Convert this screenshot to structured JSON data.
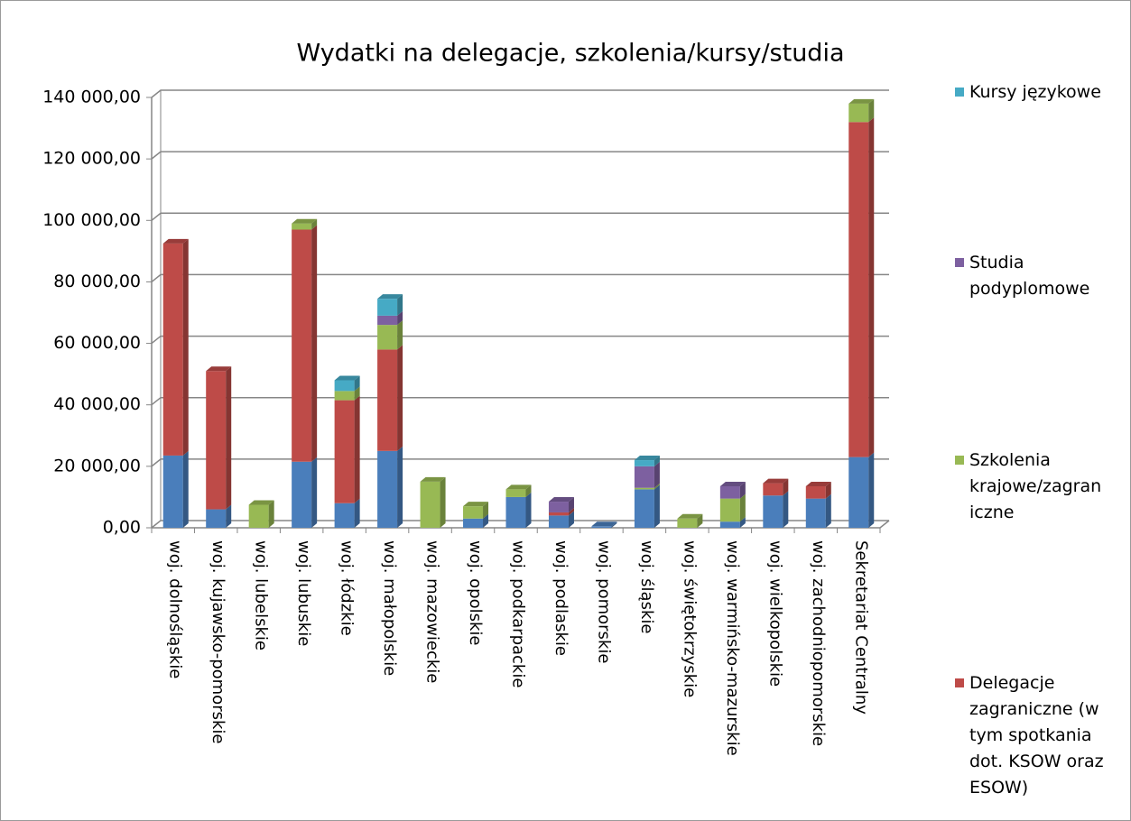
{
  "chart_data": {
    "type": "bar",
    "stacked": true,
    "title": "Wydatki na delegacje, szkolenia/kursy/studia",
    "categories": [
      "woj. dolnośląskie",
      "woj. kujawsko-pomorskie",
      "woj. lubelskie",
      "woj. lubuskie",
      "woj. łódzkie",
      "woj. małopolskie",
      "woj. mazowieckie",
      "woj. opolskie",
      "woj. podkarpackie",
      "woj. podlaskie",
      "woj. pomorskie",
      "woj. śląskie",
      "woj. świętokrzyskie",
      "woj. warmińsko-mazurskie",
      "woj. wielkopolskie",
      "woj. zachodniopomorskie",
      "Sekretariat Centralny"
    ],
    "series": [
      {
        "color": "#4a7ebb",
        "values": [
          23500,
          6000,
          0,
          21500,
          8000,
          25000,
          0,
          3000,
          10000,
          4000,
          500,
          12500,
          0,
          2000,
          10500,
          9500,
          23000
        ]
      },
      {
        "name": "Delegacje zagraniczne (w tym spotkania dot. KSOW oraz ESOW)",
        "color": "#be4b48",
        "values": [
          69000,
          45000,
          0,
          75500,
          33500,
          33000,
          0,
          0,
          0,
          1000,
          0,
          0,
          0,
          0,
          4000,
          4000,
          109000
        ]
      },
      {
        "name": "Szkolenia krajowe/zagraniczne",
        "color": "#98b954",
        "values": [
          0,
          0,
          7500,
          2000,
          3000,
          8000,
          15000,
          4000,
          2500,
          0,
          0,
          500,
          3000,
          7500,
          0,
          0,
          6000
        ]
      },
      {
        "name": "Studia podyplomowe",
        "color": "#7d60a0",
        "values": [
          0,
          0,
          0,
          0,
          0,
          3000,
          0,
          0,
          0,
          3500,
          0,
          7000,
          0,
          4000,
          0,
          0,
          0
        ]
      },
      {
        "name": "Kursy językowe",
        "color": "#46aac5",
        "values": [
          0,
          0,
          0,
          0,
          3500,
          5500,
          0,
          0,
          0,
          0,
          0,
          2000,
          0,
          0,
          0,
          0,
          0
        ]
      }
    ],
    "ylim": [
      0,
      140000
    ],
    "yticks": [
      {
        "value": 0,
        "label": "0,00"
      },
      {
        "value": 20000,
        "label": "20 000,00"
      },
      {
        "value": 40000,
        "label": "40 000,00"
      },
      {
        "value": 60000,
        "label": "60 000,00"
      },
      {
        "value": 80000,
        "label": "80 000,00"
      },
      {
        "value": 100000,
        "label": "100 000,00"
      },
      {
        "value": 120000,
        "label": "120 000,00"
      },
      {
        "value": 140000,
        "label": "140 000,00"
      }
    ],
    "grid": true,
    "legend": "right"
  }
}
